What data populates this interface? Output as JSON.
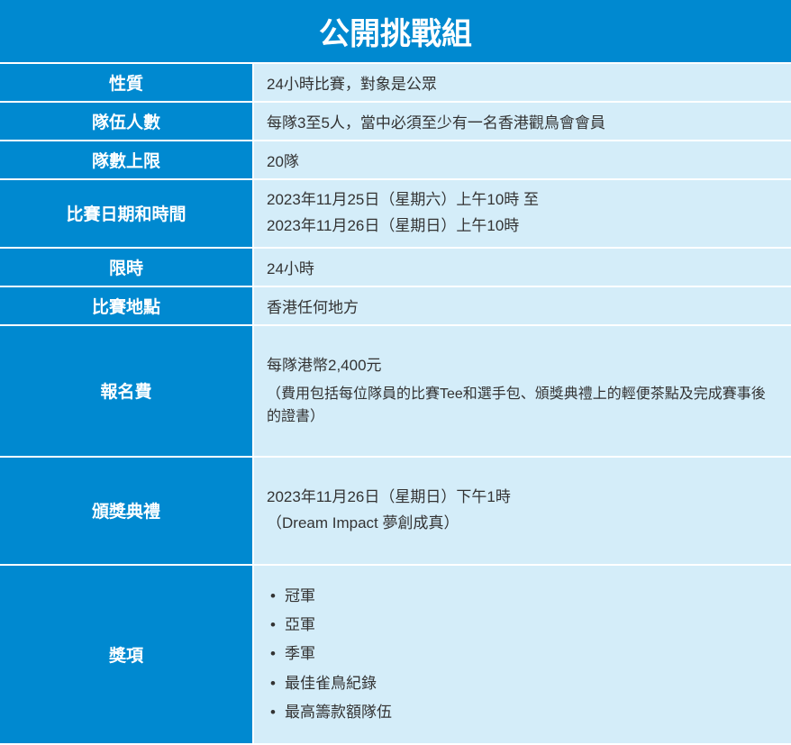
{
  "title": "公開挑戰組",
  "colors": {
    "header_bg": "#0089d0",
    "header_text": "#ffffff",
    "value_bg": "#d4edf9",
    "value_text": "#333333",
    "border": "#ffffff"
  },
  "rows": {
    "nature": {
      "label": "性質",
      "value": "24小時比賽，對象是公眾"
    },
    "team_size": {
      "label": "隊伍人數",
      "value": "每隊3至5人，當中必須至少有一名香港觀鳥會會員"
    },
    "team_limit": {
      "label": "隊數上限",
      "value": "20隊"
    },
    "date_time": {
      "label": "比賽日期和時間",
      "line1": "2023年11月25日（星期六）上午10時 至",
      "line2": "2023年11月26日（星期日）上午10時"
    },
    "duration": {
      "label": "限時",
      "value": "24小時"
    },
    "location": {
      "label": "比賽地點",
      "value": "香港任何地方"
    },
    "fee": {
      "label": "報名費",
      "main": "每隊港幣2,400元",
      "note": "（費用包括每位隊員的比賽Tee和選手包、頒獎典禮上的輕便茶點及完成賽事後的證書）"
    },
    "ceremony": {
      "label": "頒獎典禮",
      "line1": "2023年11月26日（星期日）下午1時",
      "line2": "（Dream Impact 夢創成真）"
    },
    "awards": {
      "label": "獎項",
      "items": [
        "冠軍",
        "亞軍",
        "季軍",
        "最佳雀鳥紀錄",
        "最高籌款額隊伍"
      ]
    }
  }
}
